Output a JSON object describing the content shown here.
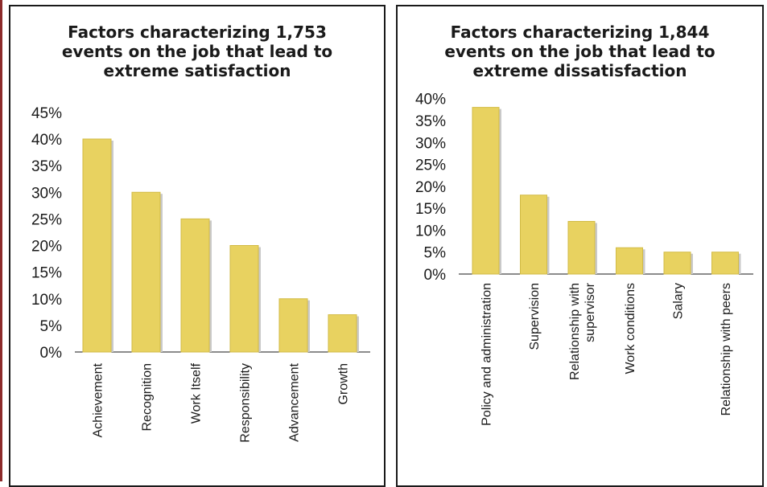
{
  "chart_data": [
    {
      "type": "bar",
      "title": "Factors characterizing 1,753 events on the job that lead to extreme satisfaction",
      "title_lines": [
        "Factors characterizing 1,753",
        "events on the job that lead to",
        "extreme satisfaction"
      ],
      "categories": [
        "Achievement",
        "Recognition",
        "Work Itself",
        "Responsibility",
        "Advancement",
        "Growth"
      ],
      "values": [
        40,
        30,
        25,
        20,
        10,
        7
      ],
      "ylim": [
        0,
        45
      ],
      "yticks": [
        "45%",
        "40%",
        "35%",
        "30%",
        "25%",
        "20%",
        "15%",
        "10%",
        "5%",
        "0%"
      ],
      "xlabel": "",
      "ylabel": "",
      "grid": false,
      "bar_color": "#e8d260"
    },
    {
      "type": "bar",
      "title": "Factors characterizing 1,844 events on the job that lead to extreme dissatisfaction",
      "title_lines": [
        "Factors characterizing 1,844",
        "events on the job that lead to",
        "extreme dissatisfaction"
      ],
      "categories": [
        "Policy and administration",
        "Supervision",
        "Relationship with supervisor",
        "Work conditions",
        "Salary",
        "Relationship with peers"
      ],
      "category_lines": [
        [
          "Policy and administration"
        ],
        [
          "Supervision"
        ],
        [
          "Relationship with",
          "supervisor"
        ],
        [
          "Work conditions"
        ],
        [
          "Salary"
        ],
        [
          "Relationship with peers"
        ]
      ],
      "values": [
        38,
        18,
        12,
        6,
        5,
        5
      ],
      "ylim": [
        0,
        40
      ],
      "yticks": [
        "40%",
        "35%",
        "30%",
        "25%",
        "20%",
        "15%",
        "10%",
        "5%",
        "0%"
      ],
      "xlabel": "",
      "ylabel": "",
      "grid": false,
      "bar_color": "#e8d260"
    }
  ]
}
